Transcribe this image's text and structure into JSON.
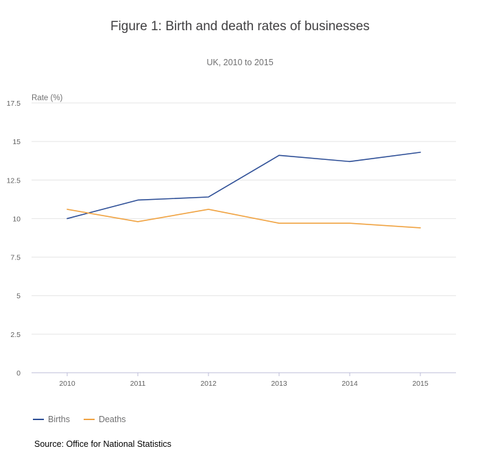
{
  "chart_data": {
    "type": "line",
    "title": "Figure 1: Birth and death rates of businesses",
    "subtitle": "UK, 2010 to 2015",
    "ylabel": "Rate (%)",
    "xlabel": "",
    "x": [
      "2010",
      "2011",
      "2012",
      "2013",
      "2014",
      "2015"
    ],
    "ylim": [
      0,
      17.5
    ],
    "yticks": [
      0,
      2.5,
      5,
      7.5,
      10,
      12.5,
      15,
      17.5
    ],
    "ytick_labels": [
      "0",
      "2.5",
      "5",
      "7.5",
      "10",
      "12.5",
      "15",
      "17.5"
    ],
    "grid": true,
    "legend_position": "bottom-left",
    "series": [
      {
        "name": "Births",
        "color": "#2e4f97",
        "values": [
          10.0,
          11.2,
          11.4,
          14.1,
          13.7,
          14.3
        ]
      },
      {
        "name": "Deaths",
        "color": "#f0a342",
        "values": [
          10.6,
          9.8,
          10.6,
          9.7,
          9.7,
          9.4
        ]
      }
    ]
  },
  "source": "Source: Office for National Statistics"
}
